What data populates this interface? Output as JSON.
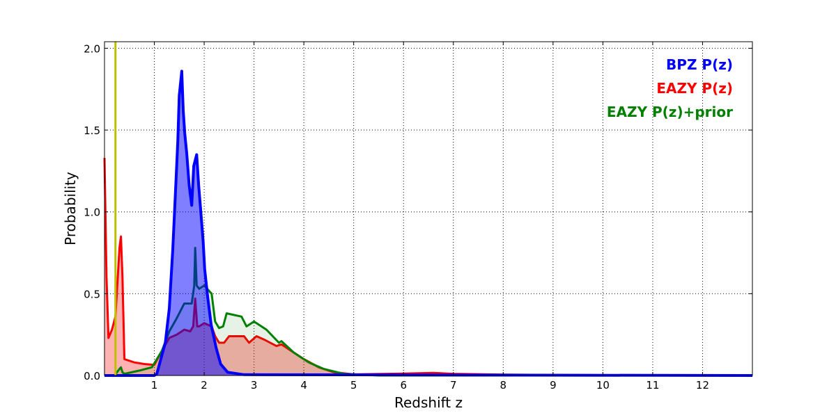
{
  "chart_data": {
    "type": "area",
    "title": "",
    "xlabel": "Redshift z",
    "ylabel": "Probability",
    "xlim": [
      0,
      13
    ],
    "ylim": [
      0,
      2.04
    ],
    "xticks": [
      1,
      2,
      3,
      4,
      5,
      6,
      7,
      8,
      9,
      10,
      11,
      12
    ],
    "xtick_labels": [
      "1",
      "2",
      "3",
      "4",
      "5",
      "6",
      "7",
      "8",
      "9",
      "10",
      "11",
      "12"
    ],
    "yticks": [
      0,
      0.5,
      1.0,
      1.5,
      2.0
    ],
    "ytick_labels": [
      "0.0",
      "0.5",
      "1.0",
      "1.5",
      "2.0"
    ],
    "grid": true,
    "legend_placement": "top-right",
    "vline": {
      "x": 0.22,
      "color": "#bfbf00"
    },
    "series": [
      {
        "name": "EAZY P(z)",
        "color": "#ff0000",
        "fill": "rgba(255,0,0,0.3)",
        "x": [
          0,
          0.04,
          0.08,
          0.15,
          0.22,
          0.3,
          0.33,
          0.36,
          0.4,
          0.6,
          0.8,
          1.0,
          1.15,
          1.3,
          1.45,
          1.6,
          1.72,
          1.78,
          1.82,
          1.86,
          1.9,
          2.0,
          2.15,
          2.22,
          2.3,
          2.4,
          2.5,
          2.8,
          2.9,
          3.05,
          3.2,
          3.45,
          3.55,
          3.75,
          4.0,
          4.3,
          4.6,
          5,
          6,
          6.6,
          7,
          8,
          10,
          13
        ],
        "y": [
          1.33,
          0.6,
          0.23,
          0.28,
          0.36,
          0.78,
          0.85,
          0.6,
          0.1,
          0.08,
          0.07,
          0.065,
          0.15,
          0.23,
          0.25,
          0.28,
          0.27,
          0.3,
          0.47,
          0.3,
          0.3,
          0.32,
          0.3,
          0.24,
          0.2,
          0.2,
          0.24,
          0.24,
          0.2,
          0.24,
          0.22,
          0.18,
          0.19,
          0.15,
          0.1,
          0.05,
          0.02,
          0.007,
          0.012,
          0.016,
          0.01,
          0.005,
          0.002,
          0
        ]
      },
      {
        "name": "EAZY P(z)+prior",
        "color": "#008000",
        "fill": "rgba(0,128,0,0.1)",
        "x": [
          0,
          0.2,
          0.3,
          0.33,
          0.36,
          0.4,
          0.7,
          0.95,
          1.15,
          1.3,
          1.45,
          1.6,
          1.75,
          1.8,
          1.82,
          1.85,
          1.9,
          2.0,
          2.15,
          2.22,
          2.3,
          2.38,
          2.45,
          2.75,
          2.85,
          3.0,
          3.25,
          3.5,
          3.55,
          3.8,
          4.1,
          4.4,
          4.8,
          5.5,
          13
        ],
        "y": [
          0,
          0,
          0.04,
          0.05,
          0.02,
          0.01,
          0.03,
          0.05,
          0.15,
          0.27,
          0.35,
          0.44,
          0.44,
          0.55,
          0.78,
          0.55,
          0.53,
          0.55,
          0.5,
          0.33,
          0.29,
          0.3,
          0.38,
          0.36,
          0.3,
          0.33,
          0.28,
          0.2,
          0.21,
          0.14,
          0.08,
          0.04,
          0.01,
          0,
          0
        ]
      },
      {
        "name": "BPZ P(z)",
        "color": "#0000ff",
        "fill": "rgba(0,0,255,0.5)",
        "x": [
          0,
          1.0,
          1.05,
          1.22,
          1.3,
          1.37,
          1.43,
          1.47,
          1.5,
          1.55,
          1.58,
          1.61,
          1.65,
          1.7,
          1.75,
          1.79,
          1.85,
          1.89,
          1.93,
          1.98,
          2.01,
          2.07,
          2.14,
          2.24,
          2.33,
          2.47,
          2.8,
          13
        ],
        "y": [
          0,
          0,
          0.01,
          0.2,
          0.41,
          0.77,
          1.16,
          1.43,
          1.71,
          1.86,
          1.62,
          1.48,
          1.36,
          1.16,
          1.04,
          1.28,
          1.35,
          1.16,
          1.01,
          0.82,
          0.65,
          0.48,
          0.31,
          0.17,
          0.07,
          0.02,
          0.005,
          0
        ]
      }
    ]
  }
}
